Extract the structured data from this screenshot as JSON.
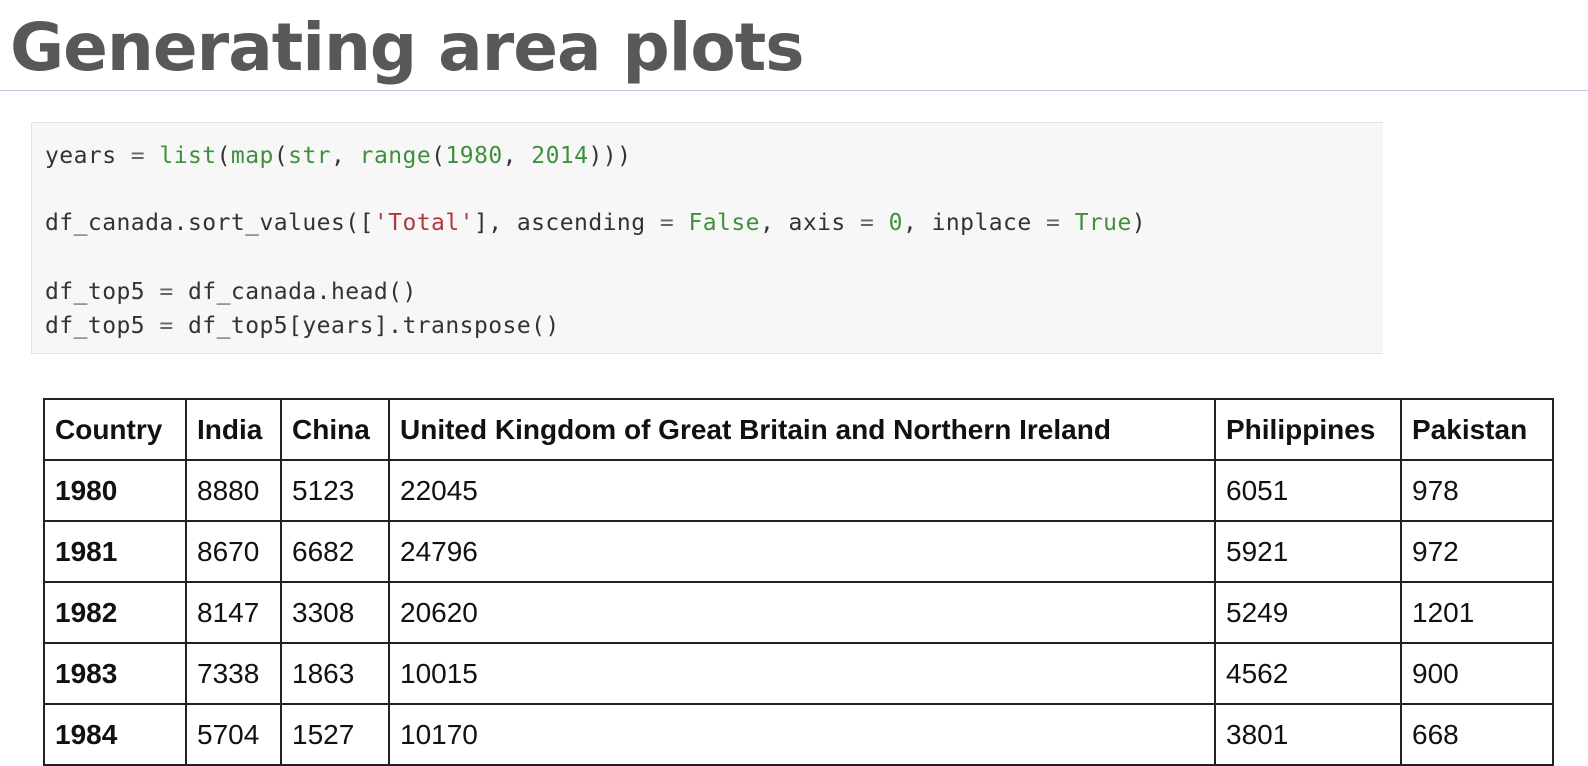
{
  "slide": {
    "title": "Generating area plots"
  },
  "code": {
    "line1": {
      "a": "years",
      "b": " = ",
      "c": "list",
      "d": "(",
      "e": "map",
      "f": "(",
      "g": "str",
      "h": ", ",
      "i": "range",
      "j": "(",
      "k": "1980",
      "l": ", ",
      "m": "2014",
      "n": ")))"
    },
    "line2": {
      "a": "df_canada.sort_values([",
      "b": "'Total'",
      "c": "], ascending ",
      "d": "=",
      "e": " ",
      "f": "False",
      "g": ", axis ",
      "h": "=",
      "i": " ",
      "j": "0",
      "k": ", inplace ",
      "l": "=",
      "m": " ",
      "n": "True",
      "o": ")"
    },
    "line3": {
      "a": "df_top5",
      "b": " = ",
      "c": "df_canada.head()"
    },
    "line4": {
      "a": "df_top5",
      "b": " = ",
      "c": "df_top5[years].transpose()"
    }
  },
  "table": {
    "headers": [
      "Country",
      "India",
      "China",
      "United Kingdom of Great Britain and Northern Ireland",
      "Philippines",
      "Pakistan"
    ],
    "rows": [
      {
        "year": "1980",
        "values": [
          "8880",
          "5123",
          "22045",
          "6051",
          "978"
        ]
      },
      {
        "year": "1981",
        "values": [
          "8670",
          "6682",
          "24796",
          "5921",
          "972"
        ]
      },
      {
        "year": "1982",
        "values": [
          "8147",
          "3308",
          "20620",
          "5249",
          "1201"
        ]
      },
      {
        "year": "1983",
        "values": [
          "7338",
          "1863",
          "10015",
          "4562",
          "900"
        ]
      },
      {
        "year": "1984",
        "values": [
          "5704",
          "1527",
          "10170",
          "3801",
          "668"
        ]
      }
    ]
  }
}
